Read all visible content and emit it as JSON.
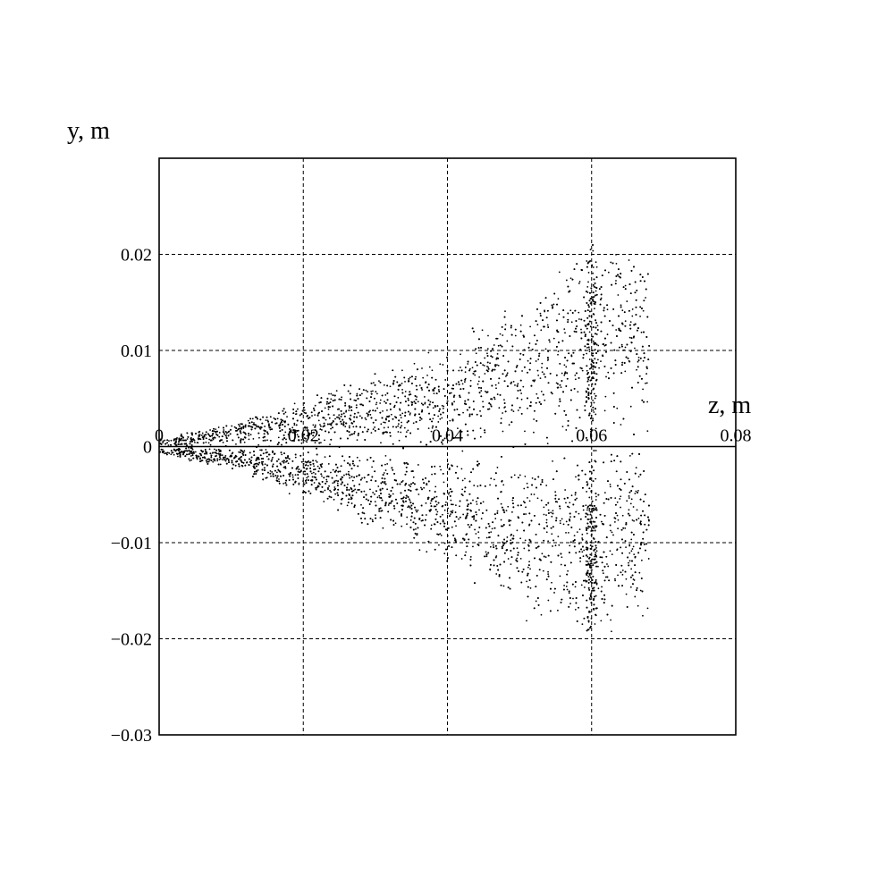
{
  "chart_data": {
    "type": "scatter",
    "title": "",
    "xlabel": "z, m",
    "ylabel": "y, m",
    "xlim": [
      0,
      0.08
    ],
    "ylim": [
      -0.03,
      0.03
    ],
    "x_ticks": [
      0,
      0.02,
      0.04,
      0.06,
      0.08
    ],
    "x_tick_labels": [
      "0",
      "0.02",
      "0.04",
      "0.06",
      "0.08"
    ],
    "y_ticks": [
      -0.03,
      -0.02,
      -0.01,
      0,
      0.01,
      0.02
    ],
    "y_tick_labels": [
      "−0.03",
      "−0.02",
      "−0.01",
      "0",
      "0.01",
      "0.02"
    ],
    "grid": true,
    "grid_style": "dashed",
    "x_axis_drawn_at_y": 0,
    "marker": "dot",
    "point_color": "#000000",
    "envelope": {
      "description": "dense particle cloud widening along z",
      "z_max": 0.068,
      "points": [
        {
          "z": 0.0,
          "y_min": -0.0008,
          "y_max": 0.0008
        },
        {
          "z": 0.01,
          "y_min": -0.0025,
          "y_max": 0.0025
        },
        {
          "z": 0.02,
          "y_min": -0.0055,
          "y_max": 0.005
        },
        {
          "z": 0.03,
          "y_min": -0.009,
          "y_max": 0.008
        },
        {
          "z": 0.04,
          "y_min": -0.0125,
          "y_max": 0.011
        },
        {
          "z": 0.05,
          "y_min": -0.018,
          "y_max": 0.0165
        },
        {
          "z": 0.06,
          "y_min": -0.021,
          "y_max": 0.0215
        },
        {
          "z": 0.068,
          "y_min": -0.018,
          "y_max": 0.02
        }
      ]
    }
  }
}
